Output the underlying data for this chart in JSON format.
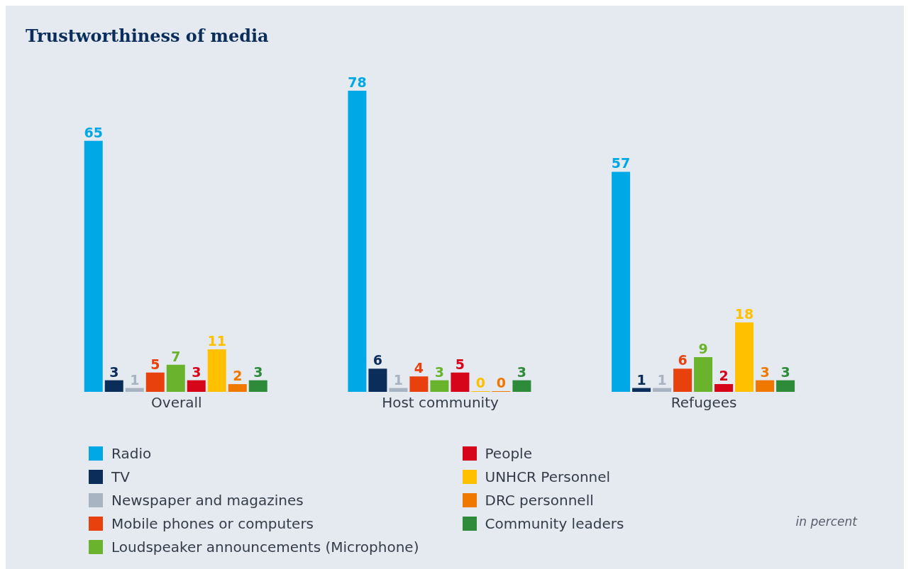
{
  "chart_data": {
    "type": "bar",
    "title": "Trustworthiness of media",
    "categories": [
      "Overall",
      "Host community",
      "Refugees"
    ],
    "series": [
      {
        "name": "Radio",
        "color": "#00a9e6",
        "values": [
          65,
          78,
          57
        ]
      },
      {
        "name": "TV",
        "color": "#0a2d5a",
        "values": [
          3,
          6,
          1
        ]
      },
      {
        "name": "Newspaper and magazines",
        "color": "#a8b4c2",
        "values": [
          1,
          1,
          1
        ]
      },
      {
        "name": "Mobile phones or computers",
        "color": "#e8410e",
        "values": [
          5,
          4,
          6
        ]
      },
      {
        "name": "Loudspeaker announcements (Microphone)",
        "color": "#6ab42d",
        "values": [
          7,
          3,
          9
        ]
      },
      {
        "name": "People",
        "color": "#d6051a",
        "values": [
          3,
          5,
          2
        ]
      },
      {
        "name": "UNHCR Personnel",
        "color": "#ffc000",
        "values": [
          11,
          0,
          18
        ]
      },
      {
        "name": "DRC personnell",
        "color": "#f07800",
        "values": [
          2,
          0,
          3
        ]
      },
      {
        "name": "Community leaders",
        "color": "#2e8b3a",
        "values": [
          3,
          3,
          3
        ]
      }
    ],
    "data_labels": true,
    "legend": "bottom",
    "annotations": [
      "in percent"
    ]
  }
}
